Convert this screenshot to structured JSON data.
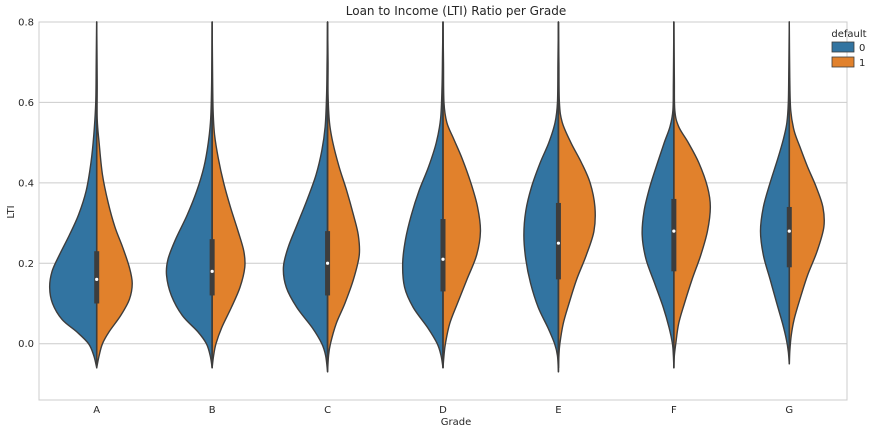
{
  "chart_data": {
    "type": "violin",
    "title": "Loan to Income (LTI) Ratio per Grade",
    "xlabel": "Grade",
    "ylabel": "LTI",
    "ylim": [
      -0.14,
      0.8
    ],
    "yticks": [
      "0.0",
      "0.2",
      "0.4",
      "0.6",
      "0.8"
    ],
    "ytick_values": [
      0.0,
      0.2,
      0.4,
      0.6,
      0.8
    ],
    "categories": [
      "A",
      "B",
      "C",
      "D",
      "E",
      "F",
      "G"
    ],
    "grid": true,
    "split": true,
    "legend": {
      "title": "default",
      "placement": "top-right",
      "entries": [
        {
          "label": "0",
          "color": "#3274a1"
        },
        {
          "label": "1",
          "color": "#e1812c"
        }
      ]
    },
    "series": [
      {
        "name": "0",
        "color": "#3274a1",
        "profiles": [
          [
            [
              -0.06,
              0.0
            ],
            [
              -0.03,
              0.06
            ],
            [
              0.0,
              0.17
            ],
            [
              0.03,
              0.42
            ],
            [
              0.06,
              0.72
            ],
            [
              0.1,
              0.92
            ],
            [
              0.14,
              0.98
            ],
            [
              0.18,
              0.93
            ],
            [
              0.22,
              0.78
            ],
            [
              0.27,
              0.57
            ],
            [
              0.32,
              0.38
            ],
            [
              0.38,
              0.22
            ],
            [
              0.45,
              0.12
            ],
            [
              0.52,
              0.06
            ],
            [
              0.6,
              0.02
            ],
            [
              0.7,
              0.01
            ],
            [
              0.8,
              0.0
            ]
          ],
          [
            [
              -0.06,
              0.0
            ],
            [
              -0.03,
              0.04
            ],
            [
              0.0,
              0.12
            ],
            [
              0.03,
              0.3
            ],
            [
              0.07,
              0.62
            ],
            [
              0.12,
              0.85
            ],
            [
              0.17,
              0.95
            ],
            [
              0.21,
              0.92
            ],
            [
              0.26,
              0.76
            ],
            [
              0.32,
              0.52
            ],
            [
              0.38,
              0.32
            ],
            [
              0.44,
              0.17
            ],
            [
              0.5,
              0.08
            ],
            [
              0.56,
              0.03
            ],
            [
              0.65,
              0.01
            ],
            [
              0.8,
              0.0
            ]
          ],
          [
            [
              -0.07,
              0.0
            ],
            [
              -0.03,
              0.04
            ],
            [
              0.0,
              0.12
            ],
            [
              0.04,
              0.32
            ],
            [
              0.09,
              0.64
            ],
            [
              0.14,
              0.86
            ],
            [
              0.19,
              0.92
            ],
            [
              0.24,
              0.82
            ],
            [
              0.3,
              0.62
            ],
            [
              0.36,
              0.42
            ],
            [
              0.42,
              0.24
            ],
            [
              0.48,
              0.12
            ],
            [
              0.54,
              0.05
            ],
            [
              0.62,
              0.02
            ],
            [
              0.7,
              0.01
            ],
            [
              0.8,
              0.0
            ]
          ],
          [
            [
              -0.06,
              0.0
            ],
            [
              -0.03,
              0.04
            ],
            [
              0.0,
              0.12
            ],
            [
              0.04,
              0.32
            ],
            [
              0.09,
              0.62
            ],
            [
              0.14,
              0.8
            ],
            [
              0.2,
              0.84
            ],
            [
              0.26,
              0.78
            ],
            [
              0.32,
              0.66
            ],
            [
              0.38,
              0.5
            ],
            [
              0.44,
              0.3
            ],
            [
              0.5,
              0.14
            ],
            [
              0.56,
              0.05
            ],
            [
              0.64,
              0.02
            ],
            [
              0.72,
              0.01
            ],
            [
              0.8,
              0.0
            ]
          ],
          [
            [
              -0.07,
              0.0
            ],
            [
              -0.03,
              0.02
            ],
            [
              0.0,
              0.08
            ],
            [
              0.04,
              0.22
            ],
            [
              0.09,
              0.42
            ],
            [
              0.15,
              0.58
            ],
            [
              0.21,
              0.68
            ],
            [
              0.27,
              0.72
            ],
            [
              0.33,
              0.68
            ],
            [
              0.39,
              0.56
            ],
            [
              0.45,
              0.38
            ],
            [
              0.5,
              0.2
            ],
            [
              0.55,
              0.07
            ],
            [
              0.6,
              0.02
            ],
            [
              0.7,
              0.01
            ],
            [
              0.8,
              0.0
            ]
          ],
          [
            [
              -0.06,
              0.0
            ],
            [
              -0.03,
              0.01
            ],
            [
              0.0,
              0.03
            ],
            [
              0.04,
              0.1
            ],
            [
              0.09,
              0.22
            ],
            [
              0.15,
              0.4
            ],
            [
              0.21,
              0.58
            ],
            [
              0.27,
              0.66
            ],
            [
              0.33,
              0.62
            ],
            [
              0.39,
              0.5
            ],
            [
              0.45,
              0.34
            ],
            [
              0.5,
              0.2
            ],
            [
              0.54,
              0.08
            ],
            [
              0.58,
              0.02
            ],
            [
              0.65,
              0.01
            ],
            [
              0.8,
              0.0
            ]
          ],
          [
            [
              -0.05,
              0.0
            ],
            [
              -0.02,
              0.02
            ],
            [
              0.01,
              0.06
            ],
            [
              0.05,
              0.14
            ],
            [
              0.1,
              0.26
            ],
            [
              0.16,
              0.4
            ],
            [
              0.22,
              0.54
            ],
            [
              0.28,
              0.6
            ],
            [
              0.34,
              0.54
            ],
            [
              0.4,
              0.4
            ],
            [
              0.46,
              0.24
            ],
            [
              0.51,
              0.12
            ],
            [
              0.55,
              0.05
            ],
            [
              0.6,
              0.02
            ],
            [
              0.68,
              0.01
            ],
            [
              0.8,
              0.0
            ]
          ]
        ]
      },
      {
        "name": "1",
        "color": "#e1812c",
        "profiles": [
          [
            [
              -0.06,
              0.0
            ],
            [
              -0.03,
              0.05
            ],
            [
              0.0,
              0.12
            ],
            [
              0.03,
              0.26
            ],
            [
              0.07,
              0.5
            ],
            [
              0.11,
              0.68
            ],
            [
              0.15,
              0.74
            ],
            [
              0.19,
              0.68
            ],
            [
              0.24,
              0.54
            ],
            [
              0.29,
              0.38
            ],
            [
              0.35,
              0.24
            ],
            [
              0.42,
              0.12
            ],
            [
              0.5,
              0.05
            ],
            [
              0.56,
              0.01
            ],
            [
              0.65,
              0.01
            ],
            [
              0.8,
              0.0
            ]
          ],
          [
            [
              -0.06,
              0.0
            ],
            [
              -0.03,
              0.03
            ],
            [
              0.0,
              0.08
            ],
            [
              0.04,
              0.2
            ],
            [
              0.09,
              0.4
            ],
            [
              0.14,
              0.58
            ],
            [
              0.19,
              0.68
            ],
            [
              0.23,
              0.66
            ],
            [
              0.28,
              0.54
            ],
            [
              0.34,
              0.38
            ],
            [
              0.4,
              0.24
            ],
            [
              0.46,
              0.13
            ],
            [
              0.52,
              0.05
            ],
            [
              0.58,
              0.02
            ],
            [
              0.66,
              0.01
            ],
            [
              0.8,
              0.0
            ]
          ],
          [
            [
              -0.07,
              0.0
            ],
            [
              -0.03,
              0.02
            ],
            [
              0.0,
              0.06
            ],
            [
              0.05,
              0.18
            ],
            [
              0.1,
              0.36
            ],
            [
              0.16,
              0.54
            ],
            [
              0.22,
              0.66
            ],
            [
              0.27,
              0.64
            ],
            [
              0.32,
              0.54
            ],
            [
              0.38,
              0.4
            ],
            [
              0.44,
              0.24
            ],
            [
              0.5,
              0.11
            ],
            [
              0.55,
              0.04
            ],
            [
              0.62,
              0.01
            ],
            [
              0.7,
              0.01
            ],
            [
              0.8,
              0.0
            ]
          ],
          [
            [
              -0.06,
              0.0
            ],
            [
              -0.03,
              0.02
            ],
            [
              0.0,
              0.05
            ],
            [
              0.05,
              0.14
            ],
            [
              0.1,
              0.3
            ],
            [
              0.16,
              0.5
            ],
            [
              0.22,
              0.7
            ],
            [
              0.28,
              0.78
            ],
            [
              0.34,
              0.72
            ],
            [
              0.4,
              0.58
            ],
            [
              0.46,
              0.4
            ],
            [
              0.51,
              0.22
            ],
            [
              0.55,
              0.08
            ],
            [
              0.6,
              0.02
            ],
            [
              0.7,
              0.01
            ],
            [
              0.8,
              0.0
            ]
          ],
          [
            [
              -0.07,
              0.0
            ],
            [
              -0.03,
              0.01
            ],
            [
              0.0,
              0.03
            ],
            [
              0.05,
              0.1
            ],
            [
              0.1,
              0.22
            ],
            [
              0.16,
              0.38
            ],
            [
              0.22,
              0.58
            ],
            [
              0.28,
              0.74
            ],
            [
              0.34,
              0.76
            ],
            [
              0.4,
              0.66
            ],
            [
              0.45,
              0.48
            ],
            [
              0.5,
              0.26
            ],
            [
              0.55,
              0.08
            ],
            [
              0.6,
              0.02
            ],
            [
              0.7,
              0.01
            ],
            [
              0.8,
              0.0
            ]
          ],
          [
            [
              -0.06,
              0.0
            ],
            [
              -0.03,
              0.01
            ],
            [
              0.0,
              0.04
            ],
            [
              0.05,
              0.1
            ],
            [
              0.1,
              0.22
            ],
            [
              0.16,
              0.38
            ],
            [
              0.22,
              0.56
            ],
            [
              0.28,
              0.7
            ],
            [
              0.34,
              0.76
            ],
            [
              0.39,
              0.7
            ],
            [
              0.45,
              0.52
            ],
            [
              0.5,
              0.3
            ],
            [
              0.54,
              0.1
            ],
            [
              0.58,
              0.02
            ],
            [
              0.66,
              0.01
            ],
            [
              0.8,
              0.0
            ]
          ],
          [
            [
              -0.05,
              0.0
            ],
            [
              -0.02,
              0.01
            ],
            [
              0.02,
              0.04
            ],
            [
              0.06,
              0.1
            ],
            [
              0.11,
              0.22
            ],
            [
              0.17,
              0.38
            ],
            [
              0.23,
              0.58
            ],
            [
              0.29,
              0.72
            ],
            [
              0.34,
              0.7
            ],
            [
              0.39,
              0.56
            ],
            [
              0.44,
              0.38
            ],
            [
              0.49,
              0.22
            ],
            [
              0.53,
              0.1
            ],
            [
              0.58,
              0.03
            ],
            [
              0.66,
              0.01
            ],
            [
              0.8,
              0.0
            ]
          ]
        ]
      }
    ],
    "box_stats": [
      {
        "q1": 0.1,
        "median": 0.16,
        "q3": 0.23,
        "whisker_low": -0.05,
        "whisker_high": 0.8
      },
      {
        "q1": 0.12,
        "median": 0.18,
        "q3": 0.26,
        "whisker_low": -0.06,
        "whisker_high": 0.8
      },
      {
        "q1": 0.12,
        "median": 0.2,
        "q3": 0.28,
        "whisker_low": -0.06,
        "whisker_high": 0.8
      },
      {
        "q1": 0.13,
        "median": 0.21,
        "q3": 0.31,
        "whisker_low": -0.06,
        "whisker_high": 0.8
      },
      {
        "q1": 0.16,
        "median": 0.25,
        "q3": 0.35,
        "whisker_low": -0.06,
        "whisker_high": 0.8
      },
      {
        "q1": 0.18,
        "median": 0.28,
        "q3": 0.36,
        "whisker_low": -0.06,
        "whisker_high": 0.8
      },
      {
        "q1": 0.19,
        "median": 0.28,
        "q3": 0.34,
        "whisker_low": -0.05,
        "whisker_high": 0.66
      }
    ]
  }
}
